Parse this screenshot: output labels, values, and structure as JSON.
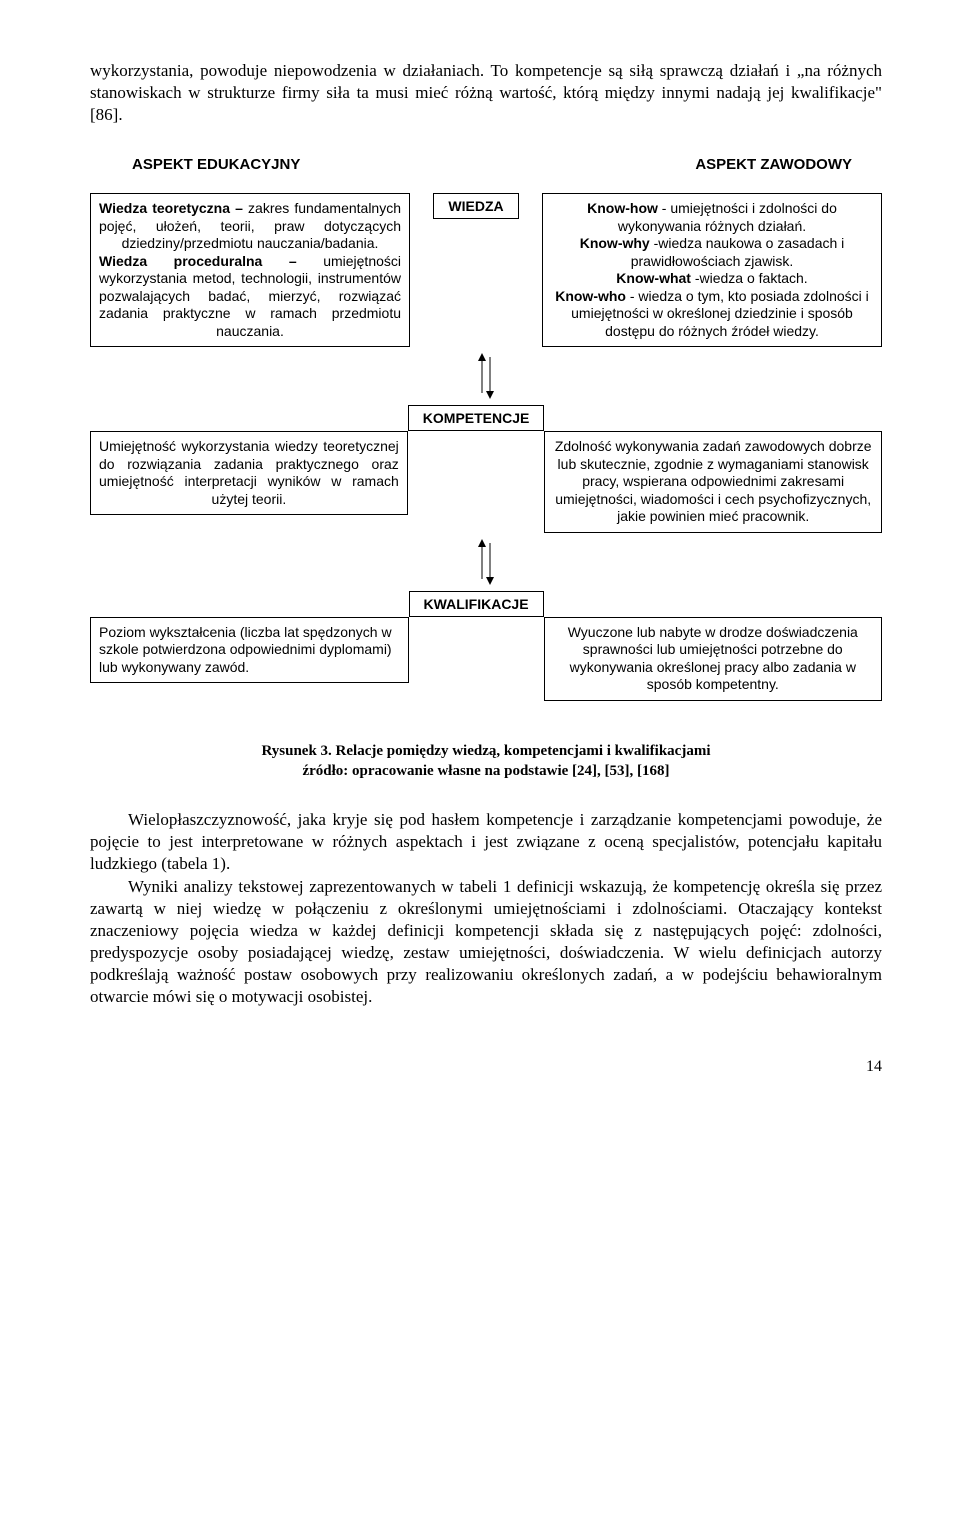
{
  "intro": "wykorzystania, powoduje niepowodzenia w działaniach. To kompetencje są siłą sprawczą działań i „na różnych stanowiskach w strukturze firmy siła ta musi mieć różną wartość, którą między innymi nadają jej kwalifikacje\" [86].",
  "headers": {
    "left": "ASPEKT EDUKACYJNY",
    "right": "ASPEKT ZAWODOWY"
  },
  "rows": {
    "wiedza": {
      "center": "WIEDZA",
      "left_html": "<b>Wiedza teoretyczna –</b> zakres fundamentalnych pojęć, ułożeń, teorii, praw dotyczących dziedziny/przedmiotu nauczania/badania.<br><b>Wiedza proceduralna –</b> umiejętności wykorzystania metod, technologii, instrumentów pozwalających badać, mierzyć, rozwiązać zadania praktyczne w ramach przedmiotu nauczania.",
      "right_html": "<b>Know-how</b> - umiejętności i zdolności do wykonywania różnych działań.<br><b>Know-why</b> -wiedza naukowa o zasadach i prawidłowościach zjawisk.<br><b>Know-what</b> -wiedza o faktach.<br><b>Know-who</b> - wiedza o tym, kto posiada zdolności i umiejętności w określonej dziedzinie i sposób dostępu do różnych źródeł wiedzy."
    },
    "kompetencje": {
      "center": "KOMPETENCJE",
      "left": "Umiejętność wykorzystania wiedzy teoretycznej do rozwiązania zadania praktycznego oraz umiejętność interpretacji wyników w ramach użytej teorii.",
      "right": "Zdolność wykonywania zadań zawodowych dobrze lub skutecznie, zgodnie z wymaganiami stanowisk pracy, wspierana odpowiednimi zakresami umiejętności, wiadomości i cech psychofizycznych, jakie powinien mieć pracownik."
    },
    "kwalifikacje": {
      "center": "KWALIFIKACJE",
      "left": "Poziom wykształcenia (liczba lat spędzonych w szkole potwierdzona odpowiednimi dyplomami) lub wykonywany zawód.",
      "right": "Wyuczone lub nabyte w drodze doświadczenia sprawności lub umiejętności potrzebne do wykonywania określonej pracy albo zadania w sposób kompetentny."
    }
  },
  "caption": {
    "line1": "Rysunek 3. Relacje pomiędzy wiedzą, kompetencjami i kwalifikacjami",
    "line2": "źródło: opracowanie własne na podstawie [24], [53], [168]"
  },
  "body": {
    "p1": "Wielopłaszczyznowość, jaka kryje się pod hasłem kompetencje i zarządzanie kompetencjami powoduje, że pojęcie to jest interpretowane w różnych aspektach i jest związane z oceną specjalistów, potencjału kapitału ludzkiego (tabela 1).",
    "p2": "Wyniki analizy tekstowej zaprezentowanych w tabeli 1 definicji wskazują, że kompetencję określa się przez zawartą w niej wiedzę w połączeniu z określonymi umiejętnościami i zdolnościami. Otaczający kontekst znaczeniowy pojęcia wiedza w każdej definicji kompetencji składa się z następujących pojęć: zdolności, predyspozycje osoby posiadającej wiedzę, zestaw umiejętności, doświadczenia. W wielu definicjach autorzy podkreślają ważność postaw osobowych przy realizowaniu określonych zadań, a w podejściu behawioralnym otwarcie mówi się o motywacji osobistej."
  },
  "pagenum": "14"
}
